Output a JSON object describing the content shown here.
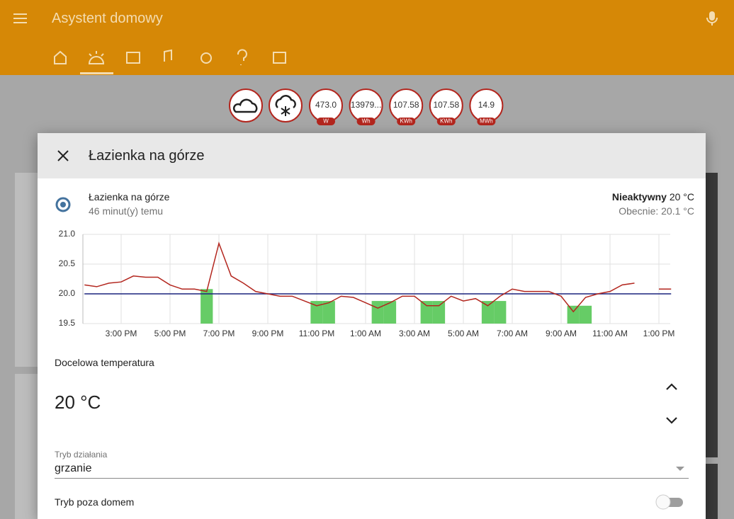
{
  "header": {
    "title": "Asystent domowy"
  },
  "badges": [
    {
      "value": "473.0",
      "unit": "W"
    },
    {
      "value": "13979...",
      "unit": "Wh"
    },
    {
      "value": "107.58",
      "unit": "KWh"
    },
    {
      "value": "107.58",
      "unit": "KWh"
    },
    {
      "value": "14.9",
      "unit": "MWh"
    }
  ],
  "dialog": {
    "title": "Łazienka na górze",
    "entity_name": "Łazienka na górze",
    "last_changed": "46 minut(y) temu",
    "state": "Nieaktywny",
    "state_value": "20 °C",
    "current": "Obecnie: 20.1 °C",
    "target_label": "Docelowa temperatura",
    "target_value": "20 °C",
    "mode_label": "Tryb działania",
    "mode_value": "grzanie",
    "away_label": "Tryb poza domem"
  },
  "chart_data": {
    "type": "line",
    "categories": [
      null,
      null,
      null,
      "3:00 PM",
      null,
      null,
      null,
      "5:00 PM",
      null,
      null,
      null,
      "7:00 PM",
      null,
      null,
      null,
      "9:00 PM",
      null,
      null,
      null,
      "11:00 PM",
      null,
      null,
      null,
      "1:00 AM",
      null,
      null,
      null,
      "3:00 AM",
      null,
      null,
      null,
      "5:00 AM",
      null,
      null,
      null,
      "7:00 AM",
      null,
      null,
      null,
      "9:00 AM",
      null,
      null,
      null,
      "11:00 AM",
      null,
      null,
      null,
      "1:00 PM",
      null
    ],
    "series": [
      {
        "color": "#b3261e",
        "values": [
          20.15,
          20.12,
          20.18,
          20.2,
          20.3,
          20.28,
          20.28,
          20.15,
          20.08,
          20.08,
          20.04,
          20.85,
          20.3,
          20.18,
          20.04,
          20.0,
          19.96,
          19.96,
          19.88,
          19.8,
          19.85,
          19.96,
          19.94,
          19.85,
          19.76,
          19.85,
          19.96,
          19.96,
          19.8,
          19.8,
          19.96,
          19.88,
          19.92,
          19.8,
          19.96,
          20.08,
          20.04,
          20.04,
          20.04,
          19.96,
          19.7,
          19.94,
          20.0,
          20.04,
          20.15,
          20.18,
          null,
          20.08,
          20.08
        ]
      },
      {
        "color": "#1a237e",
        "values": [
          20,
          20,
          20,
          20,
          20,
          20,
          20,
          20,
          20,
          20,
          20,
          20,
          20,
          20,
          20,
          20,
          20,
          20,
          20,
          20,
          20,
          20,
          20,
          20,
          20,
          20,
          20,
          20,
          20,
          20,
          20,
          20,
          20,
          20,
          20,
          20,
          20,
          20,
          20,
          20,
          20,
          20,
          20,
          20,
          20,
          20,
          20,
          20,
          20
        ]
      },
      {
        "color": "#66cc66",
        "kind": "bar",
        "values": [
          null,
          null,
          null,
          null,
          null,
          null,
          null,
          null,
          null,
          null,
          20.08,
          null,
          null,
          null,
          null,
          null,
          null,
          null,
          null,
          19.88,
          19.88,
          null,
          null,
          null,
          19.88,
          19.88,
          null,
          null,
          19.88,
          19.88,
          null,
          null,
          null,
          19.88,
          19.88,
          null,
          null,
          null,
          null,
          null,
          19.8,
          19.8,
          null,
          null,
          null,
          null,
          null,
          null,
          null
        ]
      }
    ],
    "ylim": [
      19.5,
      21.0
    ],
    "yticks": [
      19.5,
      {
        "value": 20,
        "label": "20.0"
      },
      20.5,
      {
        "value": 21,
        "label": "21.0"
      }
    ],
    "grid": true
  }
}
